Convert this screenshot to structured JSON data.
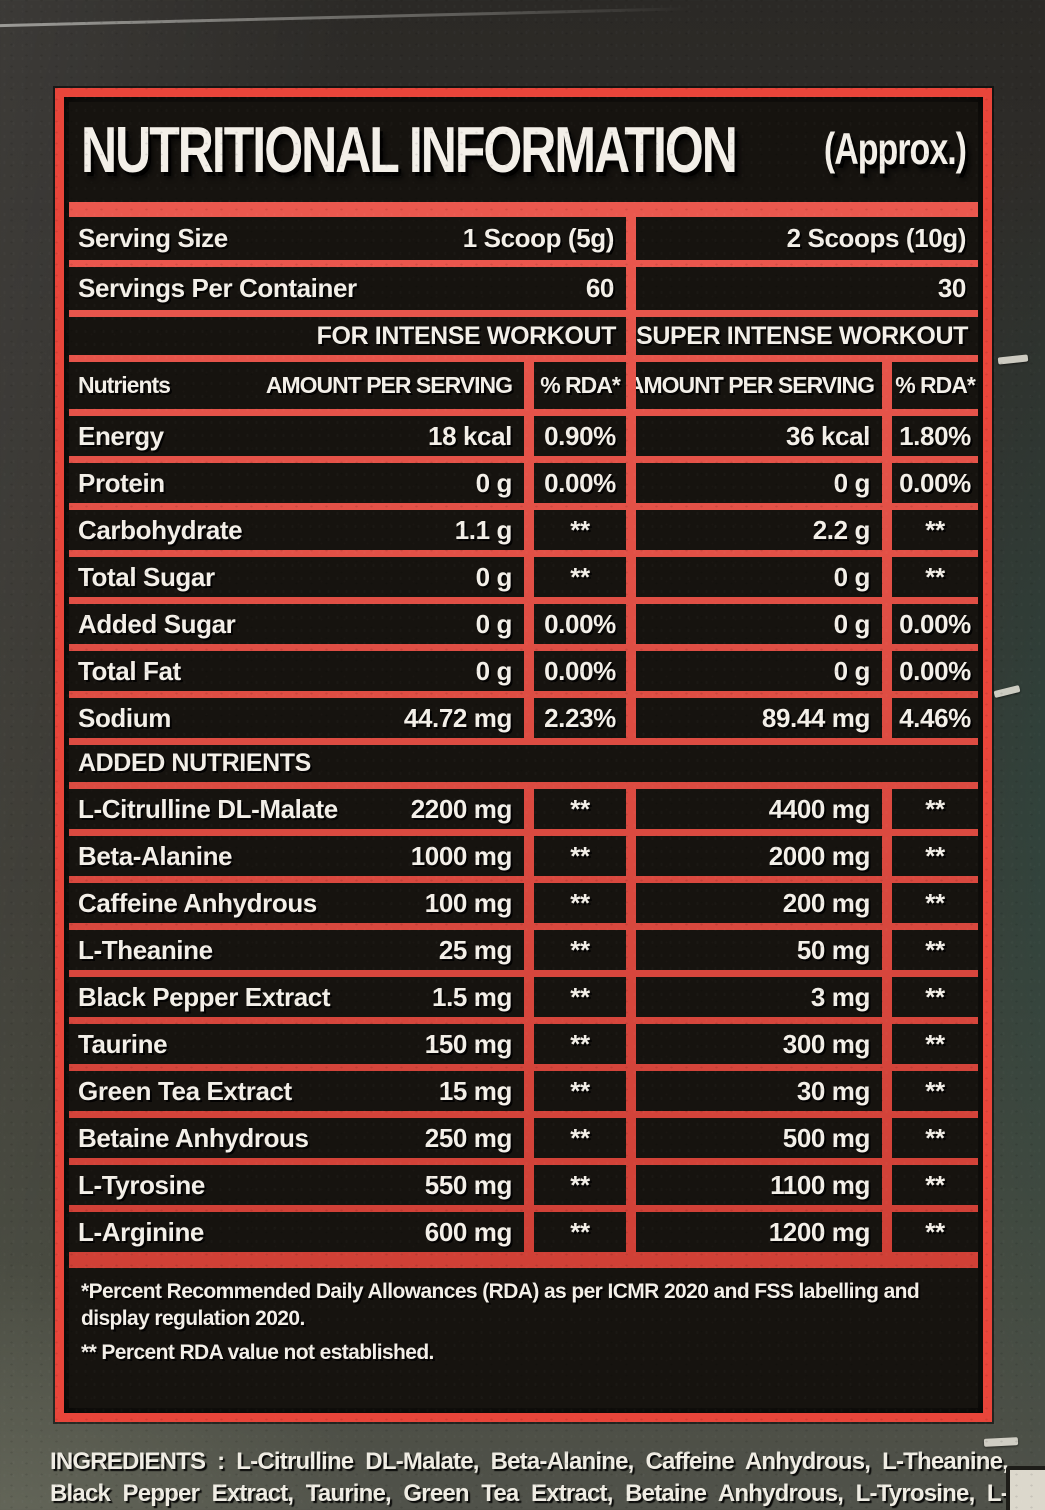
{
  "title": {
    "main": "NUTRITIONAL INFORMATION",
    "approx": "(Approx.)"
  },
  "serving": {
    "size_label": "Serving Size",
    "size_intense": "1 Scoop (5g)",
    "size_super": "2 Scoops (10g)",
    "per_container_label": "Servings Per Container",
    "per_container_intense": "60",
    "per_container_super": "30"
  },
  "column_banners": {
    "intense": "FOR INTENSE WORKOUT",
    "super_intense": "FOR SUPER INTENSE WORKOUT"
  },
  "table_header": {
    "nutrients": "Nutrients",
    "amount_1": "AMOUNT PER SERVING",
    "rda_1": "% RDA*",
    "amount_2": "AMOUNT PER SERVING",
    "rda_2": "% RDA*"
  },
  "nutrients": [
    {
      "name": "Energy",
      "amount1": "18 kcal",
      "rda1": "0.90%",
      "amount2": "36 kcal",
      "rda2": "1.80%"
    },
    {
      "name": "Protein",
      "amount1": "0 g",
      "rda1": "0.00%",
      "amount2": "0 g",
      "rda2": "0.00%"
    },
    {
      "name": "Carbohydrate",
      "amount1": "1.1 g",
      "rda1": "**",
      "amount2": "2.2 g",
      "rda2": "**"
    },
    {
      "name": "Total Sugar",
      "amount1": "0 g",
      "rda1": "**",
      "amount2": "0 g",
      "rda2": "**"
    },
    {
      "name": "Added Sugar",
      "amount1": "0 g",
      "rda1": "0.00%",
      "amount2": "0 g",
      "rda2": "0.00%"
    },
    {
      "name": "Total Fat",
      "amount1": "0 g",
      "rda1": "0.00%",
      "amount2": "0 g",
      "rda2": "0.00%"
    },
    {
      "name": "Sodium",
      "amount1": "44.72 mg",
      "rda1": "2.23%",
      "amount2": "89.44 mg",
      "rda2": "4.46%"
    }
  ],
  "added_nutrients_title": "ADDED NUTRIENTS",
  "added_nutrients": [
    {
      "name": "L-Citrulline DL-Malate",
      "amount1": "2200 mg",
      "rda1": "**",
      "amount2": "4400 mg",
      "rda2": "**"
    },
    {
      "name": "Beta-Alanine",
      "amount1": "1000 mg",
      "rda1": "**",
      "amount2": "2000 mg",
      "rda2": "**"
    },
    {
      "name": "Caffeine Anhydrous",
      "amount1": "100 mg",
      "rda1": "**",
      "amount2": "200 mg",
      "rda2": "**"
    },
    {
      "name": "L-Theanine",
      "amount1": "25 mg",
      "rda1": "**",
      "amount2": "50 mg",
      "rda2": "**"
    },
    {
      "name": "Black Pepper Extract",
      "amount1": "1.5 mg",
      "rda1": "**",
      "amount2": "3 mg",
      "rda2": "**"
    },
    {
      "name": "Taurine",
      "amount1": "150 mg",
      "rda1": "**",
      "amount2": "300 mg",
      "rda2": "**"
    },
    {
      "name": "Green Tea Extract",
      "amount1": "15 mg",
      "rda1": "**",
      "amount2": "30 mg",
      "rda2": "**"
    },
    {
      "name": "Betaine Anhydrous",
      "amount1": "250 mg",
      "rda1": "**",
      "amount2": "500 mg",
      "rda2": "**"
    },
    {
      "name": "L-Tyrosine",
      "amount1": "550 mg",
      "rda1": "**",
      "amount2": "1100 mg",
      "rda2": "**"
    },
    {
      "name": "L-Arginine",
      "amount1": "600 mg",
      "rda1": "**",
      "amount2": "1200 mg",
      "rda2": "**"
    }
  ],
  "footnotes": {
    "rda_note": "*Percent Recommended Daily Allowances (RDA) as per ICMR 2020 and FSS labelling and display regulation 2020.",
    "not_established_note": "** Percent RDA value not established."
  },
  "ingredients": "INGREDIENTS : L-Citrulline DL-Malate, Beta-Alanine, Caffeine Anhydrous, L-Theanine, Black Pepper Extract, Taurine, Green Tea Extract, Betaine Anhydrous, L-Tyrosine, L-Arginine, Sodium Chloride, Natural",
  "colors": {
    "accent_red": "#e8453a",
    "panel_black": "#16130f",
    "text_white": "#f3efe8"
  }
}
